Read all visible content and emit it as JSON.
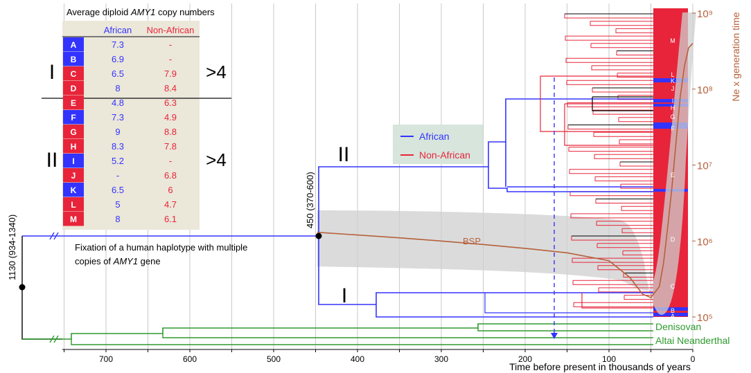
{
  "table": {
    "title_prefix": "Average diploid ",
    "title_gene": "AMY1",
    "title_suffix": " copy numbers",
    "col_african": "African",
    "col_non_african": "Non-African",
    "groups": [
      {
        "label": "I",
        "compare": ">4"
      },
      {
        "label": "II",
        "compare": ">4"
      }
    ],
    "rows": [
      {
        "hap": "A",
        "group": "African",
        "african": "7.3",
        "non_african": "-"
      },
      {
        "hap": "B",
        "group": "African",
        "african": "6.9",
        "non_african": "-"
      },
      {
        "hap": "C",
        "group": "Non-African",
        "african": "6.5",
        "non_african": "7.9"
      },
      {
        "hap": "D",
        "group": "Non-African",
        "african": "8",
        "non_african": "8.4"
      },
      {
        "hap": "E",
        "group": "Non-African",
        "african": "4.8",
        "non_african": "6.3"
      },
      {
        "hap": "F",
        "group": "African",
        "african": "7.3",
        "non_african": "4.9"
      },
      {
        "hap": "G",
        "group": "Non-African",
        "african": "9",
        "non_african": "8.8"
      },
      {
        "hap": "H",
        "group": "Non-African",
        "african": "8.3",
        "non_african": "7.8"
      },
      {
        "hap": "I",
        "group": "African",
        "african": "5.2",
        "non_african": "-"
      },
      {
        "hap": "J",
        "group": "Non-African",
        "african": "-",
        "non_african": "6.8"
      },
      {
        "hap": "K",
        "group": "African",
        "african": "6.5",
        "non_african": "6"
      },
      {
        "hap": "L",
        "group": "Non-African",
        "african": "5",
        "non_african": "4.7"
      },
      {
        "hap": "M",
        "group": "Non-African",
        "african": "8",
        "non_african": "6.1"
      }
    ]
  },
  "legend": {
    "african": "African",
    "non_african": "Non-African"
  },
  "annotations": {
    "root_node": "1130 (934-1340)",
    "node_450": "450  (370-600)",
    "fixation_line1": "Fixation of a human haplotype with multiple",
    "fixation_line2_prefix": "copies of ",
    "fixation_gene": "AMY1",
    "fixation_line2_suffix": " gene",
    "clade_II": "II",
    "clade_I": "I",
    "bsp": "BSP",
    "denisovan": "Denisovan",
    "neanderthal": "Altai Neanderthal"
  },
  "colors": {
    "african": "#3333ff",
    "non_african": "#e8243a",
    "archaic": "#2e9a2e",
    "bsp": "#b5603a",
    "table_bg": "#ebe7d9",
    "legend_bg": "#d7e5dc",
    "band": "#cfcfcf"
  },
  "chart_data": {
    "type": "line",
    "xlabel": "Time before present in thousands of years",
    "ylabel": "Ne x generation time",
    "x_ticks": [
      700,
      600,
      500,
      400,
      300,
      200,
      100,
      0
    ],
    "xlim": [
      0,
      750
    ],
    "y_ticks": [
      "10⁹",
      "10⁸",
      "10⁷",
      "10⁶",
      "10⁵"
    ],
    "y_scale": "log",
    "ylim": [
      100000,
      1000000000
    ],
    "series": [
      {
        "name": "BSP",
        "x": [
          448,
          400,
          350,
          300,
          250,
          200,
          150,
          100,
          75,
          60,
          50,
          40,
          35,
          30,
          25,
          20,
          15,
          10,
          5,
          0
        ],
        "y": [
          1300000,
          1200000,
          1100000,
          1000000,
          900000,
          800000,
          700000,
          550000,
          330000,
          200000,
          180000,
          250000,
          500000,
          1500000,
          5000000,
          20000000,
          80000000,
          200000000,
          350000000,
          400000000
        ]
      }
    ],
    "nodes": [
      {
        "label": "1130 (934-1340)",
        "time": 1130
      },
      {
        "label": "450  (370-600)",
        "time": 450
      }
    ],
    "haplogroup_labels": [
      "M",
      "L",
      "K",
      "J",
      "I",
      "H",
      "G",
      "F",
      "E",
      "D",
      "C",
      "B",
      "A"
    ],
    "grid": true
  }
}
